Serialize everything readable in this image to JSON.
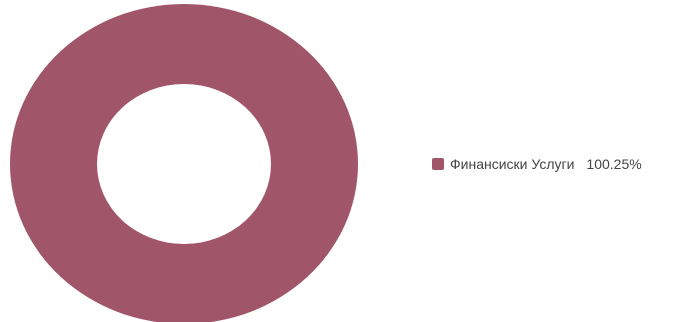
{
  "chart_data": {
    "type": "pie",
    "slices": [
      {
        "label": "Финансиски Услуги",
        "value": 100.25,
        "value_label": "100.25%",
        "color": "#A05568"
      }
    ],
    "donut": true,
    "legend_position": "right"
  }
}
